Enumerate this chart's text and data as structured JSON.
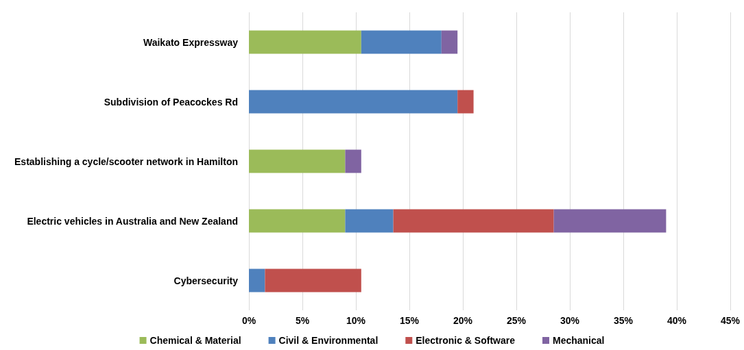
{
  "chart_data": {
    "type": "bar",
    "orientation": "horizontal",
    "stacked": true,
    "categories": [
      "Waikato Expressway",
      "Subdivision of Peacockes Rd",
      "Establishing a cycle/scooter network in Hamilton",
      "Electric vehicles in Australia and New Zealand",
      "Cybersecurity"
    ],
    "series": [
      {
        "name": "Chemical & Material",
        "color": "#9bbb59",
        "values": [
          10.5,
          null,
          9.0,
          9.0,
          null
        ]
      },
      {
        "name": "Civil & Environmental",
        "color": "#4f81bd",
        "values": [
          7.5,
          19.5,
          null,
          4.5,
          1.5
        ]
      },
      {
        "name": "Electronic & Software",
        "color": "#c0504d",
        "values": [
          null,
          1.5,
          null,
          15.0,
          9.0
        ]
      },
      {
        "name": "Mechanical",
        "color": "#8064a2",
        "values": [
          1.5,
          null,
          1.5,
          10.5,
          null
        ]
      }
    ],
    "xlim": [
      0,
      45
    ],
    "xticks": [
      {
        "value": 0,
        "label": "0%"
      },
      {
        "value": 5,
        "label": "5%"
      },
      {
        "value": 10,
        "label": "10%"
      },
      {
        "value": 15,
        "label": "15%"
      },
      {
        "value": 20,
        "label": "20%"
      },
      {
        "value": 25,
        "label": "25%"
      },
      {
        "value": 30,
        "label": "30%"
      },
      {
        "value": 35,
        "label": "35%"
      },
      {
        "value": 40,
        "label": "40%"
      },
      {
        "value": 45,
        "label": "45%"
      }
    ],
    "grid": "x",
    "legend": "bottom"
  }
}
